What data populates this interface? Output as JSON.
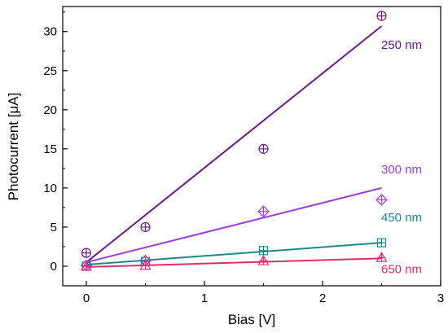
{
  "chart_data": {
    "type": "scatter",
    "xlabel": "Bias [V]",
    "ylabel": "Photocurrent [μA]",
    "xlim": [
      -0.2,
      3.0
    ],
    "ylim": [
      -2.5,
      33.2
    ],
    "xticks": [
      0,
      1,
      2,
      3
    ],
    "yticks": [
      0,
      5,
      10,
      15,
      20,
      25,
      30
    ],
    "grid": false,
    "series": [
      {
        "name": "250 nm",
        "color": "#6a1b8a",
        "marker": "circle-plus",
        "x": [
          0,
          0.5,
          1.5,
          2.5
        ],
        "y": [
          1.7,
          5.0,
          15.0,
          32.0
        ],
        "fit": {
          "x": [
            0,
            2.5
          ],
          "y": [
            0.5,
            30.7
          ]
        }
      },
      {
        "name": "300 nm",
        "color": "#9b3de0",
        "marker": "diamond-plus",
        "x": [
          0,
          0.5,
          1.5,
          2.5
        ],
        "y": [
          0.1,
          0.7,
          7.0,
          8.5
        ],
        "fit": {
          "x": [
            0,
            2.5
          ],
          "y": [
            0.5,
            10.0
          ]
        }
      },
      {
        "name": "450 nm",
        "color": "#1a8a8a",
        "marker": "square-plus",
        "x": [
          0,
          0.5,
          1.5,
          2.5
        ],
        "y": [
          0.0,
          0.6,
          2.0,
          3.0
        ],
        "fit": {
          "x": [
            0,
            2.5
          ],
          "y": [
            0.2,
            3.0
          ]
        }
      },
      {
        "name": "650 nm",
        "color": "#e8296a",
        "marker": "triangle-plus",
        "x": [
          0,
          0.5,
          1.5,
          2.5
        ],
        "y": [
          0.0,
          0.1,
          0.7,
          1.1
        ],
        "fit": {
          "x": [
            0,
            2.5
          ],
          "y": [
            -0.1,
            1.0
          ]
        }
      }
    ]
  }
}
